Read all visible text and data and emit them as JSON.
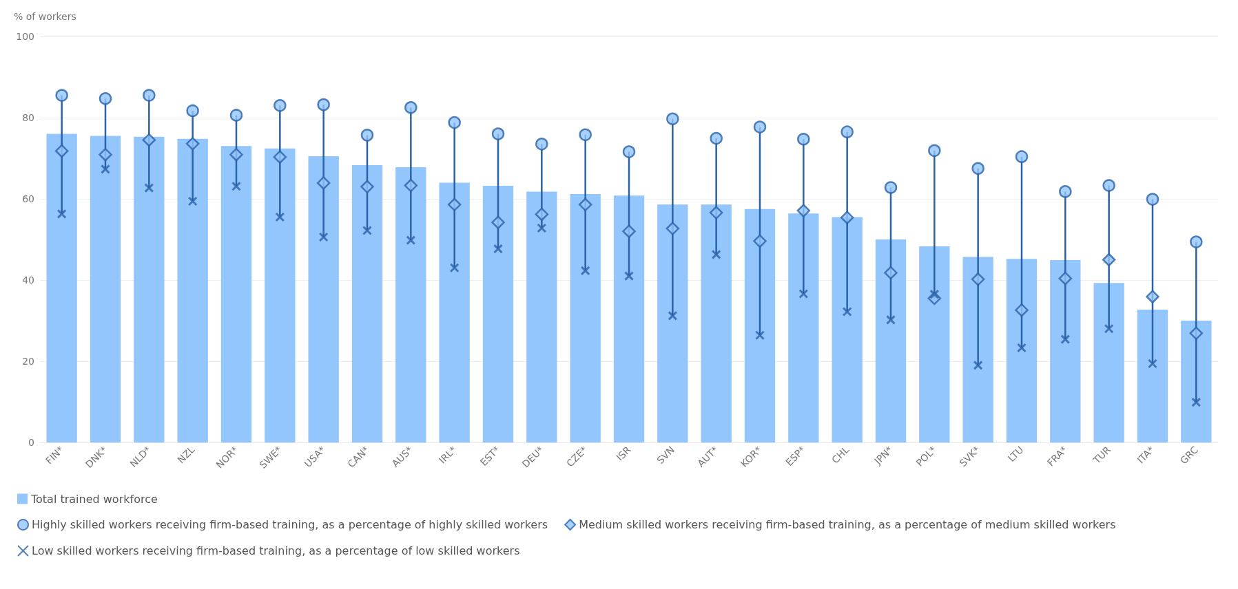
{
  "chart_data": {
    "type": "bar",
    "ylabel": "% of workers",
    "ylim": [
      0,
      100
    ],
    "yticks": [
      0,
      20,
      40,
      60,
      80,
      100
    ],
    "grid": "y",
    "legend": "bottom",
    "categories": [
      "FIN*",
      "DNK*",
      "NLD*",
      "NZL",
      "NOR*",
      "SWE*",
      "USA*",
      "CAN*",
      "AUS*",
      "IRL*",
      "EST*",
      "DEU*",
      "CZE*",
      "ISR",
      "SVN",
      "AUT*",
      "KOR*",
      "ESP*",
      "CHL",
      "JPN*",
      "POL*",
      "SVK*",
      "LTU",
      "FRA*",
      "TUR",
      "ITA*",
      "GRC"
    ],
    "series": [
      {
        "name": "Total trained workforce",
        "color": "#93c6fd",
        "values": [
          76,
          75.5,
          75.3,
          74.8,
          73,
          72.4,
          70.5,
          68.3,
          67.8,
          64,
          63.2,
          61.8,
          61.2,
          60.8,
          58.6,
          58.6,
          57.5,
          56.4,
          55.5,
          50,
          48.3,
          45.7,
          45.2,
          44.9,
          39.3,
          32.7,
          30
        ]
      },
      {
        "name": "Highly skilled workers receiving firm-based training, as a percentage of highly skilled workers",
        "type": "scatter",
        "marker": "circle",
        "color": "#2a62a8",
        "values": [
          85.5,
          84.7,
          85.5,
          81.7,
          80.6,
          83,
          83.2,
          75.7,
          82.5,
          78.8,
          76,
          73.5,
          75.8,
          71.6,
          79.7,
          74.9,
          77.7,
          74.7,
          76.5,
          62.8,
          71.9,
          67.5,
          70.4,
          61.8,
          63.3,
          59.9,
          49.4
        ]
      },
      {
        "name": "Medium skilled workers receiving firm-based training, as a percentage of medium skilled workers",
        "type": "scatter",
        "marker": "diamond",
        "color": "#2a62a8",
        "values": [
          71.8,
          70.9,
          74.5,
          73.6,
          70.9,
          70.3,
          63.9,
          63,
          63.3,
          58.6,
          54.2,
          56.2,
          58.6,
          52,
          52.7,
          56.6,
          49.6,
          57.1,
          55.4,
          41.8,
          35.5,
          40.2,
          32.6,
          40.4,
          45,
          35.9,
          26.9
        ]
      },
      {
        "name": "Low skilled workers receiving firm-based training, as a percentage of low skilled workers",
        "type": "scatter",
        "marker": "cross",
        "color": "#2a62a8",
        "values": [
          56.3,
          67.3,
          62.7,
          59.4,
          63.1,
          55.5,
          50.6,
          52.2,
          49.8,
          43,
          47.7,
          52.8,
          42.3,
          41,
          31.2,
          46.3,
          26.4,
          36.6,
          32.2,
          30.2,
          36.5,
          19,
          23.3,
          25.4,
          28,
          19.4,
          9.9
        ]
      }
    ]
  }
}
